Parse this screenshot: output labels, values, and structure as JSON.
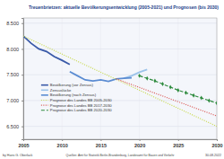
{
  "chart_data": {
    "type": "line",
    "title": "Treuenbrietzen:  aktuelle Bevölkerungsentwicklung (2005-2021) und Prognosen (bis 2030)",
    "annotations": [
      "by Hans G. Oberlack",
      "Quellen: Amt für Statistik Berlin-Brandenburg, Landesamt für Bauen und Verkehr",
      "30.08.2022"
    ],
    "x": [
      2005,
      2006,
      2007,
      2008,
      2009,
      2010,
      2011,
      2012,
      2013,
      2014,
      2015,
      2016,
      2017,
      2018,
      2019,
      2020,
      2021,
      2022,
      2023,
      2024,
      2025,
      2026,
      2027,
      2028,
      2029,
      2030
    ],
    "xlim": [
      2005,
      2030
    ],
    "xticks": [
      2005,
      2010,
      2015,
      2020,
      2025,
      2030
    ],
    "ylim": [
      6250,
      8600
    ],
    "yticks": [
      {
        "value": 6500,
        "label": "6.500"
      },
      {
        "value": 7000,
        "label": "7.000"
      },
      {
        "value": 7500,
        "label": "7.500"
      },
      {
        "value": 8000,
        "label": "8.000"
      },
      {
        "value": 8500,
        "label": "8.500"
      }
    ],
    "grid": true,
    "series": [
      {
        "name": "Bevölkerung (vor Zensus)",
        "color": "#3a5aa8",
        "line_style": "solid",
        "values": [
          8250,
          8110,
          8000,
          7950,
          7850,
          7780,
          7700,
          null,
          null,
          null,
          null,
          null,
          null,
          null,
          null,
          null,
          null,
          null,
          null,
          null,
          null,
          null,
          null,
          null,
          null,
          null
        ]
      },
      {
        "name": "Zensuslücke",
        "color": "#9cc3ea",
        "line_style": "solid",
        "values": [
          null,
          null,
          null,
          null,
          null,
          null,
          null,
          null,
          null,
          null,
          null,
          null,
          null,
          7430,
          7480,
          7550,
          7600,
          null,
          null,
          null,
          null,
          null,
          null,
          null,
          null,
          null
        ]
      },
      {
        "name": "Bevölkerung (nach Zensus)",
        "color": "#5b8cd2",
        "line_style": "solid",
        "values": [
          null,
          null,
          null,
          null,
          null,
          null,
          7560,
          7480,
          7400,
          7380,
          7400,
          7370,
          7420,
          7430,
          7440,
          null,
          null,
          null,
          null,
          null,
          null,
          null,
          null,
          null,
          null,
          null
        ]
      },
      {
        "name": "Prognose des Landes BB 2005-2030",
        "color": "#c8d94a",
        "line_style": "dotted",
        "values": [
          8250,
          null,
          null,
          null,
          null,
          null,
          null,
          null,
          null,
          null,
          null,
          null,
          null,
          null,
          null,
          null,
          null,
          null,
          null,
          null,
          null,
          null,
          null,
          null,
          null,
          6500
        ]
      },
      {
        "name": "Prognose des Landes BB 2017-2030",
        "color": "#d9534f",
        "line_style": "dotted",
        "values": [
          null,
          null,
          null,
          null,
          null,
          null,
          null,
          null,
          null,
          null,
          null,
          null,
          7420,
          null,
          null,
          null,
          null,
          null,
          null,
          null,
          null,
          null,
          null,
          null,
          null,
          6700
        ]
      },
      {
        "name": "Prognose des Landes BB 2020-2030",
        "color": "#2e8b3e",
        "line_style": "dashed",
        "marker": "diamond",
        "values": [
          null,
          null,
          null,
          null,
          null,
          null,
          null,
          null,
          null,
          null,
          null,
          null,
          null,
          null,
          null,
          7480,
          7430,
          7380,
          7320,
          7260,
          7200,
          7150,
          7100,
          7050,
          7000,
          6950
        ]
      }
    ],
    "legend": "center"
  }
}
